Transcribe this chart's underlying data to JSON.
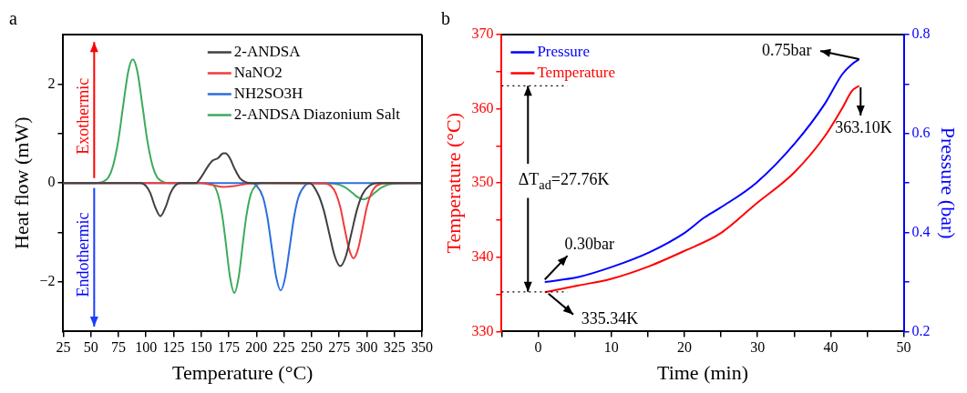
{
  "chart_data": [
    {
      "type": "line",
      "title": "a",
      "xlabel": "Temperature (°C)",
      "ylabel": "Heat flow (mW)",
      "xlim": [
        25,
        350
      ],
      "xticks": [
        25,
        50,
        75,
        100,
        125,
        150,
        175,
        200,
        225,
        250,
        275,
        300,
        325,
        350
      ],
      "ylim": [
        -3,
        3
      ],
      "yticks": [
        {
          "value": -2,
          "label": "−2"
        },
        {
          "value": -1,
          "label": null
        },
        0,
        {
          "value": 1,
          "label": null
        },
        2
      ],
      "legend": "top right",
      "marker": "none",
      "series": [
        {
          "name": "2-ANDSA",
          "color": "#404040",
          "x": [
            25,
            95,
            100,
            104,
            108,
            113,
            118,
            122,
            126,
            131,
            145,
            150,
            155,
            160,
            165,
            170,
            172,
            176,
            180,
            185,
            190,
            195,
            248,
            256,
            261,
            266,
            271,
            276,
            281,
            286,
            291,
            296,
            302,
            310,
            350
          ],
          "values": [
            0,
            0,
            -0.06,
            -0.21,
            -0.47,
            -0.67,
            -0.47,
            -0.21,
            -0.06,
            0,
            0,
            0.12,
            0.3,
            0.45,
            0.5,
            0.6,
            0.6,
            0.5,
            0.3,
            0.1,
            0.02,
            0,
            0,
            -0.23,
            -0.55,
            -1.02,
            -1.48,
            -1.68,
            -1.48,
            -1.02,
            -0.55,
            -0.23,
            -0.06,
            0,
            0
          ]
        },
        {
          "name": "NaNO2",
          "color": "#f03c3c",
          "x": [
            25,
            150,
            160,
            170,
            180,
            190,
            200,
            262,
            268,
            272,
            276,
            280,
            284,
            288,
            292,
            296,
            300,
            304,
            308,
            314,
            320,
            350
          ],
          "values": [
            0,
            0,
            -0.04,
            -0.08,
            -0.06,
            -0.02,
            0,
            -0.01,
            -0.07,
            -0.21,
            -0.49,
            -0.93,
            -1.34,
            -1.52,
            -1.34,
            -0.93,
            -0.49,
            -0.21,
            -0.07,
            -0.01,
            0,
            0
          ]
        },
        {
          "name": "NH2SO3H",
          "color": "#2a6fdb",
          "x": [
            25,
            195,
            200,
            206,
            210,
            214,
            218,
            222,
            226,
            230,
            234,
            238,
            244,
            250,
            350
          ],
          "values": [
            0,
            0,
            -0.05,
            -0.29,
            -0.7,
            -1.32,
            -1.91,
            -2.17,
            -1.91,
            -1.32,
            -0.7,
            -0.29,
            -0.05,
            0,
            0
          ]
        },
        {
          "name": "2-ANDSA Diazonium Salt",
          "color": "#3daa5c",
          "x": [
            25,
            50,
            58,
            62,
            66,
            70,
            75,
            79,
            84,
            88,
            92,
            97,
            101,
            106,
            110,
            115,
            120,
            150,
            160,
            165,
            169,
            172,
            176,
            180,
            184,
            188,
            191,
            195,
            200,
            205,
            260,
            270,
            280,
            287,
            292,
            297,
            302,
            307,
            314,
            325,
            350
          ],
          "values": [
            0,
            0,
            0.01,
            0.04,
            0.12,
            0.34,
            0.88,
            1.52,
            2.27,
            2.5,
            2.27,
            1.52,
            0.88,
            0.34,
            0.12,
            0.03,
            0,
            0,
            -0.03,
            -0.22,
            -0.65,
            -1.16,
            -1.89,
            -2.22,
            -1.89,
            -1.16,
            -0.65,
            -0.22,
            -0.04,
            0,
            0,
            -0.01,
            -0.08,
            -0.2,
            -0.29,
            -0.33,
            -0.29,
            -0.2,
            -0.08,
            -0.01,
            0
          ]
        }
      ],
      "annotations": [
        "Exothermic",
        "Endothermic"
      ]
    },
    {
      "type": "line",
      "title": "b",
      "xlabel": "Time (min)",
      "ylabel": "Temperature (°C)",
      "y2label": "Pressure (bar)",
      "xlim": [
        -5,
        50
      ],
      "xticks": [
        {
          "value": -5,
          "label": null
        },
        0,
        {
          "value": 5,
          "label": null
        },
        10,
        {
          "value": 15,
          "label": null
        },
        20,
        {
          "value": 25,
          "label": null
        },
        30,
        {
          "value": 35,
          "label": null
        },
        40,
        {
          "value": 45,
          "label": null
        },
        50
      ],
      "ylim": [
        330,
        370
      ],
      "yticks": [
        330,
        {
          "value": 335,
          "label": null
        },
        340,
        {
          "value": 345,
          "label": null
        },
        350,
        {
          "value": 355,
          "label": null
        },
        360,
        {
          "value": 365,
          "label": null
        },
        370
      ],
      "y2lim": [
        0.2,
        0.8
      ],
      "y2ticks": [
        0.2,
        {
          "value": 0.3,
          "label": null
        },
        0.4,
        {
          "value": 0.5,
          "label": null
        },
        0.6,
        {
          "value": 0.7,
          "label": null
        },
        0.8
      ],
      "legend": "top left",
      "marker": "none",
      "series": [
        {
          "name": "Pressure",
          "color": "#0000ff",
          "axis": "y2",
          "x": [
            0.9,
            5.5,
            10,
            15.2,
            20.1,
            22.7,
            24.9,
            29.8,
            35.1,
            39.2,
            41.6,
            42.9,
            43.9
          ],
          "values": [
            0.3,
            0.31,
            0.33,
            0.36,
            0.4,
            0.43,
            0.45,
            0.5,
            0.58,
            0.66,
            0.72,
            0.74,
            0.75
          ]
        },
        {
          "name": "Temperature",
          "color": "#ff0000",
          "x": [
            0.9,
            5.5,
            10,
            15.2,
            20.1,
            24.9,
            29.8,
            35.1,
            39.2,
            41.6,
            42.9,
            43.9
          ],
          "values": [
            335.3,
            336.2,
            337.1,
            338.8,
            340.9,
            343.2,
            347.2,
            351.5,
            356.3,
            360.1,
            362.4,
            363.1
          ]
        }
      ],
      "ref_lines": [
        {
          "axis": "y",
          "value": 363.1,
          "line_style": "dotted",
          "color": "#000000"
        },
        {
          "axis": "y",
          "value": 335.34,
          "line_style": "dotted",
          "color": "#000000"
        }
      ],
      "annotations": [
        "0.75bar",
        "363.10K",
        "0.30bar",
        "335.34K",
        {
          "text": "ΔT$_{ad}$=27.76K",
          "x": -1.4,
          "y": 363.1
        }
      ]
    }
  ]
}
